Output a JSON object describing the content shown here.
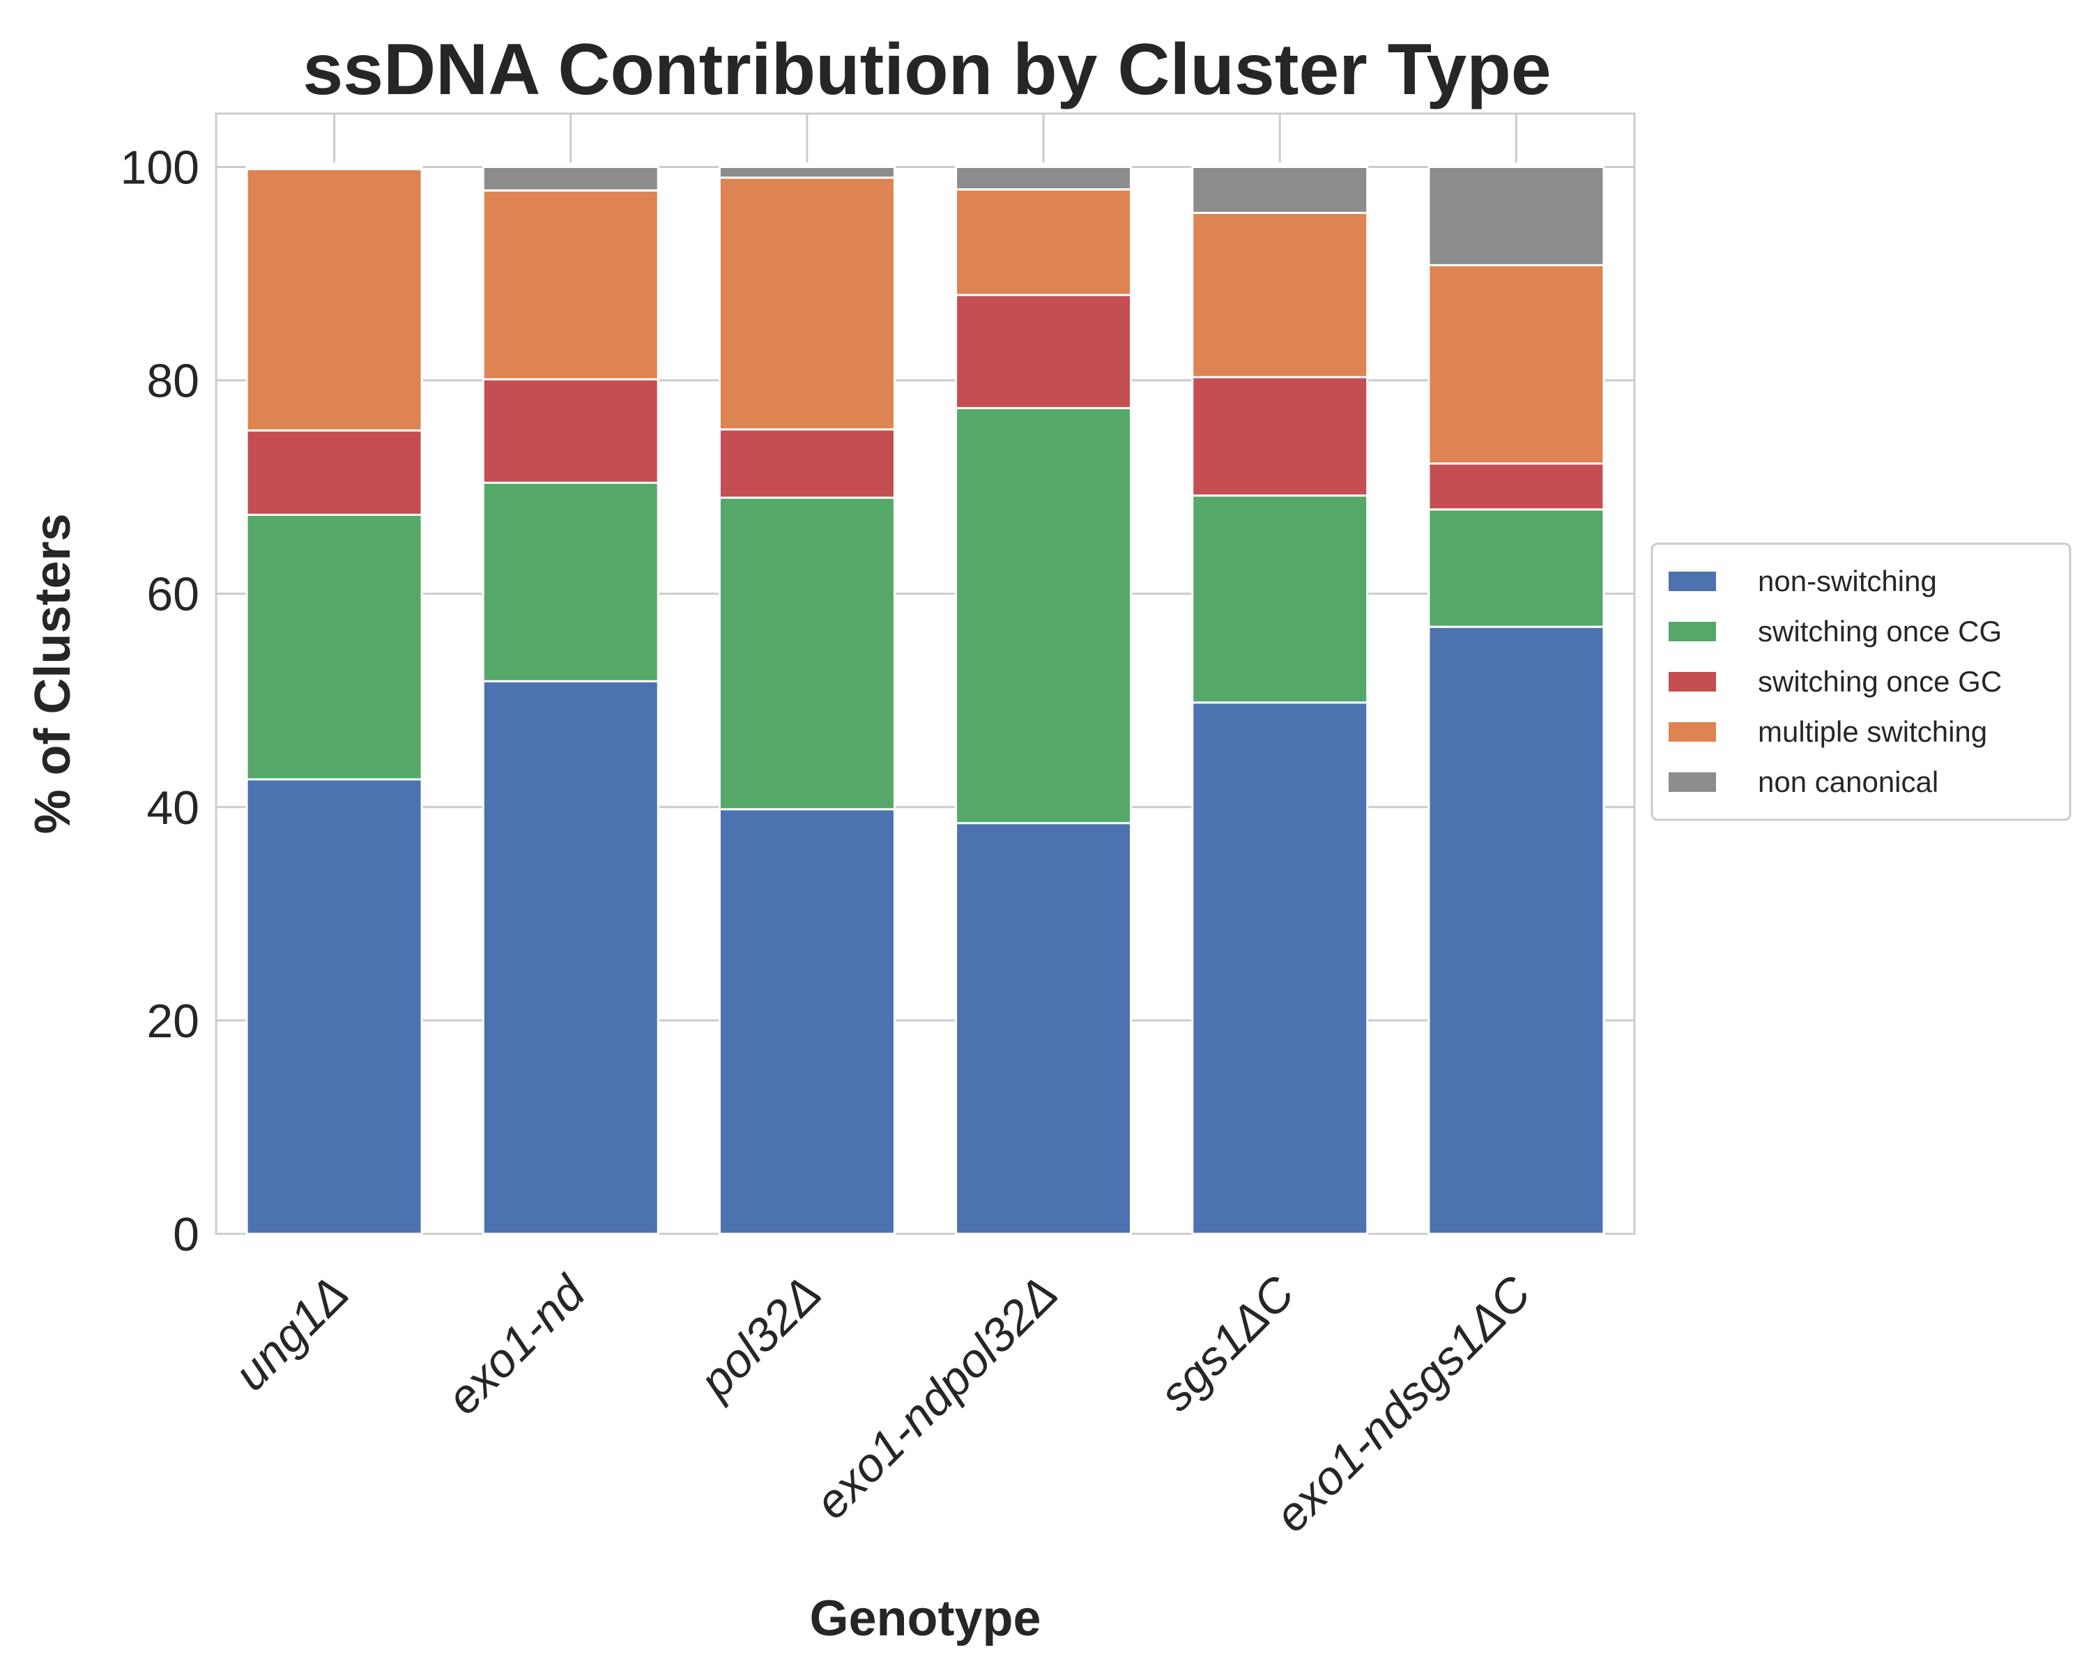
{
  "chart_data": {
    "type": "bar",
    "stacked": true,
    "title": "ssDNA Contribution by Cluster Type",
    "xlabel": "Genotype",
    "ylabel": "% of Clusters",
    "ylim": [
      0,
      105
    ],
    "yticks": [
      "0",
      "20",
      "40",
      "60",
      "80",
      "100"
    ],
    "grid": true,
    "legend_position": "right-center",
    "categories": [
      "ung1Δ",
      "exo1-nd",
      "pol32Δ",
      "exo1-ndpol32Δ",
      "sgs1ΔC",
      "exo1-ndsgs1ΔC"
    ],
    "series": [
      {
        "name": "non-switching",
        "color": "#4c72b0",
        "values": [
          42.6,
          51.8,
          39.8,
          38.5,
          49.8,
          56.9
        ]
      },
      {
        "name": "switching once CG",
        "color": "#55a868",
        "values": [
          24.8,
          18.6,
          29.2,
          38.9,
          19.4,
          11.0
        ]
      },
      {
        "name": "switching once GC",
        "color": "#c44e52",
        "values": [
          7.9,
          9.7,
          6.4,
          10.6,
          11.1,
          4.3
        ]
      },
      {
        "name": "multiple switching",
        "color": "#dd8452",
        "values": [
          24.5,
          17.7,
          23.6,
          9.9,
          15.4,
          18.6
        ]
      },
      {
        "name": "non canonical",
        "color": "#8c8c8c",
        "values": [
          0.2,
          2.2,
          1.0,
          2.1,
          4.3,
          9.2
        ]
      }
    ]
  }
}
